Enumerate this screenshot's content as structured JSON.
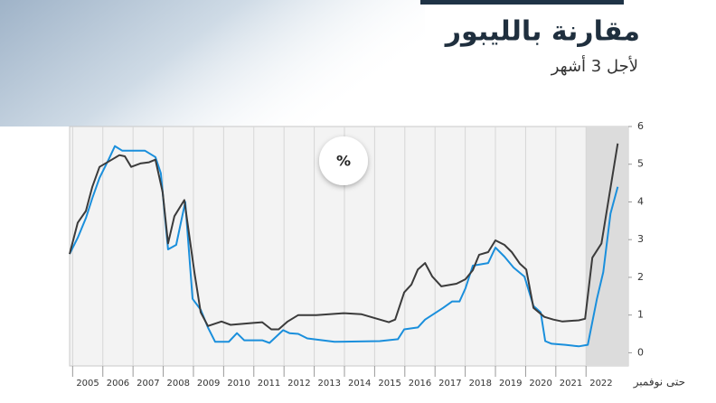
{
  "chart_data": {
    "type": "line",
    "title": "مقارنة بالليبور",
    "subtitle": "لأجل 3 أشهر",
    "unit": "%",
    "x_note": "حتى نوفمبر",
    "xlim": [
      2004.9,
      2023.4
    ],
    "ylim": [
      -0.35,
      6
    ],
    "yticks": [
      0,
      1,
      2,
      3,
      4,
      5,
      6
    ],
    "xticks": [
      2005,
      2006,
      2007,
      2008,
      2009,
      2010,
      2011,
      2012,
      2013,
      2014,
      2015,
      2016,
      2017,
      2018,
      2019,
      2020,
      2021,
      2022
    ],
    "highlight_x": [
      2022,
      2023.4
    ],
    "grid": "x",
    "series": [
      {
        "color": "#3b3b3b",
        "x": [
          2004.9,
          2005.17,
          2005.44,
          2005.65,
          2005.89,
          2006.19,
          2006.55,
          2006.73,
          2006.94,
          2007.24,
          2007.53,
          2007.74,
          2007.98,
          2008.16,
          2008.37,
          2008.7,
          2009.03,
          2009.24,
          2009.48,
          2009.93,
          2010.23,
          2010.98,
          2011.28,
          2011.58,
          2011.82,
          2012.12,
          2012.47,
          2013.07,
          2013.97,
          2014.57,
          2015.47,
          2015.68,
          2015.98,
          2016.22,
          2016.43,
          2016.67,
          2016.91,
          2017.21,
          2017.71,
          2018.01,
          2018.25,
          2018.46,
          2018.76,
          2019.0,
          2019.3,
          2019.54,
          2019.81,
          2020.02,
          2020.26,
          2020.62,
          2020.92,
          2021.22,
          2021.76,
          2021.97,
          2022.21,
          2022.51,
          2023.05
        ],
        "values": [
          2.62,
          3.45,
          3.76,
          4.4,
          4.93,
          5.07,
          5.24,
          5.21,
          4.93,
          5.02,
          5.05,
          5.12,
          4.26,
          2.9,
          3.62,
          4.05,
          2.14,
          1.07,
          0.71,
          0.83,
          0.74,
          0.79,
          0.81,
          0.62,
          0.62,
          0.83,
          1.0,
          1.0,
          1.05,
          1.02,
          0.81,
          0.88,
          1.6,
          1.81,
          2.21,
          2.38,
          2.02,
          1.76,
          1.83,
          1.95,
          2.19,
          2.6,
          2.67,
          2.98,
          2.86,
          2.67,
          2.36,
          2.21,
          1.19,
          0.95,
          0.88,
          0.83,
          0.86,
          0.9,
          2.52,
          2.9,
          5.55
        ]
      },
      {
        "color": "#1a8fdc",
        "x": [
          2004.9,
          2005.17,
          2005.44,
          2005.65,
          2005.89,
          2006.19,
          2006.4,
          2006.64,
          2007.39,
          2007.74,
          2007.92,
          2008.16,
          2008.43,
          2008.73,
          2008.97,
          2009.24,
          2009.48,
          2009.72,
          2010.17,
          2010.44,
          2010.68,
          2011.28,
          2011.52,
          2011.97,
          2012.18,
          2012.47,
          2012.77,
          2013.67,
          2015.17,
          2015.77,
          2015.98,
          2016.43,
          2016.67,
          2017.27,
          2017.57,
          2017.81,
          2018.01,
          2018.25,
          2018.76,
          2019.0,
          2019.3,
          2019.6,
          2019.96,
          2020.26,
          2020.5,
          2020.65,
          2020.86,
          2021.31,
          2021.55,
          2021.76,
          2022.06,
          2022.36,
          2022.57,
          2022.81,
          2023.05
        ],
        "values": [
          2.62,
          3.05,
          3.57,
          4.1,
          4.64,
          5.12,
          5.48,
          5.36,
          5.36,
          5.19,
          4.76,
          2.74,
          2.86,
          4.0,
          1.43,
          1.14,
          0.67,
          0.29,
          0.29,
          0.52,
          0.33,
          0.33,
          0.26,
          0.6,
          0.52,
          0.5,
          0.38,
          0.29,
          0.31,
          0.36,
          0.62,
          0.67,
          0.88,
          1.19,
          1.36,
          1.36,
          1.71,
          2.31,
          2.38,
          2.79,
          2.55,
          2.26,
          2.02,
          1.24,
          1.07,
          0.31,
          0.24,
          0.21,
          0.19,
          0.17,
          0.21,
          1.43,
          2.14,
          3.69,
          4.4
        ]
      }
    ]
  }
}
